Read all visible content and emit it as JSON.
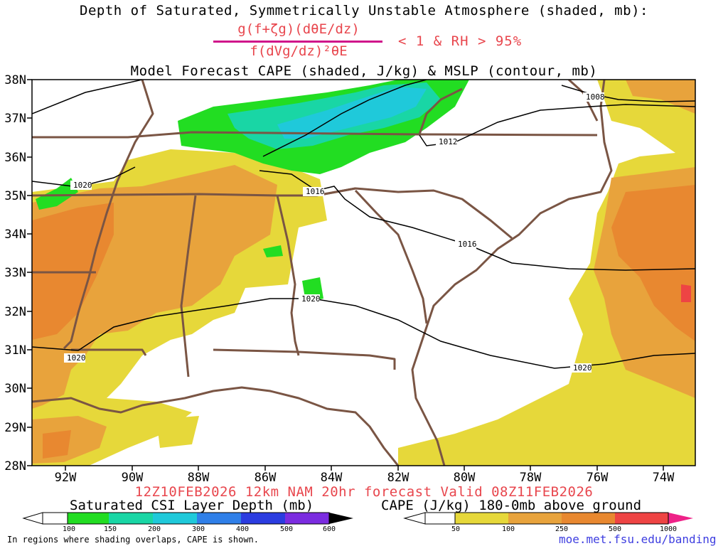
{
  "header": {
    "title_line1": "Depth of Saturated, Symmetrically Unstable Atmosphere (shaded, mb):",
    "formula_numerator": "g(f+ζg)(dθE/dz)",
    "formula_denominator": "f(dVg/dz)²θE",
    "condition": "< 1 & RH > 95%",
    "title_line3": "Model Forecast CAPE (shaded, J/kg) & MSLP (contour, mb)"
  },
  "map": {
    "lat_labels": [
      "38N",
      "37N",
      "36N",
      "35N",
      "34N",
      "33N",
      "32N",
      "31N",
      "30N",
      "29N",
      "28N"
    ],
    "lon_labels": [
      "92W",
      "90W",
      "88W",
      "86W",
      "84W",
      "82W",
      "80W",
      "78W",
      "76W",
      "74W"
    ],
    "isobar_labels": [
      "1008",
      "1012",
      "1016",
      "1020",
      "1016",
      "1020",
      "1020",
      "1020"
    ],
    "colors": {
      "state_lines": "#7a5544",
      "isobars": "#000000",
      "cape_50": "#e6d83a",
      "cape_100": "#e8a33c",
      "cape_250": "#e88830",
      "cape_500": "#ee4444",
      "csi_100": "#22dd22",
      "csi_150": "#19d6a5",
      "csi_200": "#1fc9da"
    }
  },
  "footer": {
    "valid_text": "12Z10FEB2026 12km NAM 20hr forecast Valid 08Z11FEB2026",
    "csi_title": "Saturated CSI Layer Depth (mb)",
    "cape_title": "CAPE (J/kg) 180-0mb above ground",
    "csi_ticks": [
      "100",
      "150",
      "200",
      "300",
      "400",
      "500",
      "600"
    ],
    "cape_ticks": [
      "50",
      "100",
      "250",
      "500",
      "1000"
    ],
    "note": "In regions where shading overlaps, CAPE is shown.",
    "url": "moe.met.fsu.edu/banding"
  }
}
